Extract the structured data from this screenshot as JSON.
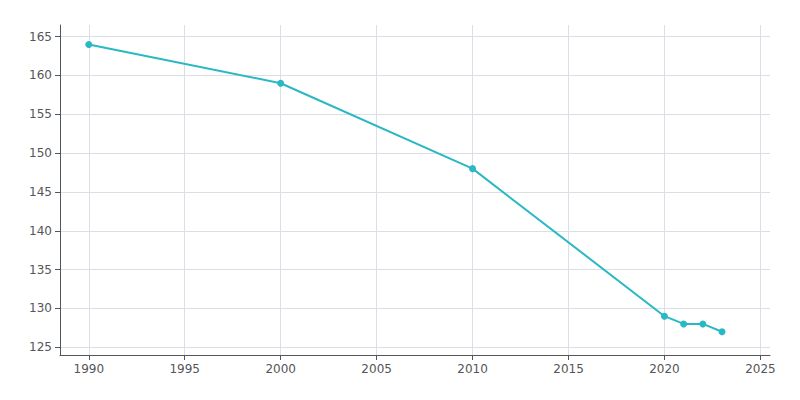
{
  "chart_data": {
    "type": "line",
    "x": [
      1990,
      2000,
      2010,
      2020,
      2021,
      2022,
      2023
    ],
    "values": [
      164,
      159,
      148,
      129,
      128,
      128,
      127
    ],
    "color": "#29B8C4",
    "marker": "circle",
    "xlim": [
      1988.5,
      2025.5
    ],
    "xticks": [
      1990,
      1995,
      2000,
      2005,
      2010,
      2015,
      2020,
      2025
    ],
    "ylim": [
      124,
      166.5
    ],
    "yticks": [
      125,
      130,
      135,
      140,
      145,
      150,
      155,
      160,
      165
    ],
    "grid": true
  }
}
